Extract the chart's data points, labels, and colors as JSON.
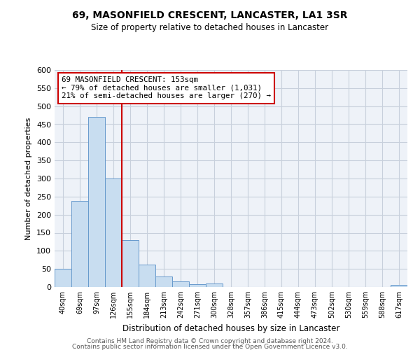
{
  "title": "69, MASONFIELD CRESCENT, LANCASTER, LA1 3SR",
  "subtitle": "Size of property relative to detached houses in Lancaster",
  "xlabel": "Distribution of detached houses by size in Lancaster",
  "ylabel": "Number of detached properties",
  "bin_labels": [
    "40sqm",
    "69sqm",
    "97sqm",
    "126sqm",
    "155sqm",
    "184sqm",
    "213sqm",
    "242sqm",
    "271sqm",
    "300sqm",
    "328sqm",
    "357sqm",
    "386sqm",
    "415sqm",
    "444sqm",
    "473sqm",
    "502sqm",
    "530sqm",
    "559sqm",
    "588sqm",
    "617sqm"
  ],
  "bar_heights": [
    50,
    238,
    470,
    300,
    130,
    62,
    30,
    15,
    8,
    10,
    0,
    0,
    0,
    0,
    0,
    0,
    0,
    0,
    0,
    0,
    5
  ],
  "bar_color": "#c8ddf0",
  "bar_edge_color": "#6699cc",
  "vline_index": 3.5,
  "vline_color": "#cc0000",
  "annotation_lines": [
    "69 MASONFIELD CRESCENT: 153sqm",
    "← 79% of detached houses are smaller (1,031)",
    "21% of semi-detached houses are larger (270) →"
  ],
  "annotation_box_color": "#ffffff",
  "annotation_box_edge": "#cc0000",
  "ylim": [
    0,
    600
  ],
  "yticks": [
    0,
    50,
    100,
    150,
    200,
    250,
    300,
    350,
    400,
    450,
    500,
    550,
    600
  ],
  "footer_line1": "Contains HM Land Registry data © Crown copyright and database right 2024.",
  "footer_line2": "Contains public sector information licensed under the Open Government Licence v3.0.",
  "bg_color": "#eef2f8",
  "grid_color": "#c8d0dc"
}
